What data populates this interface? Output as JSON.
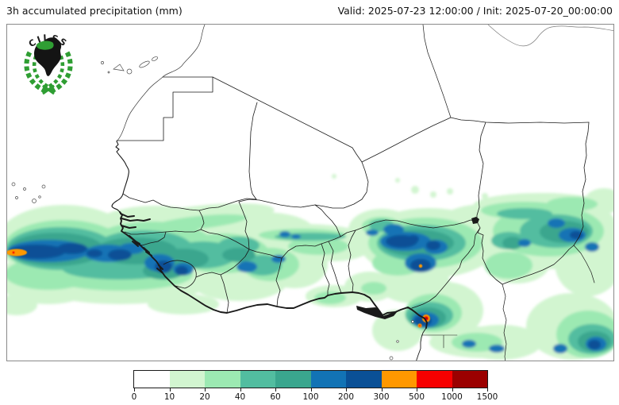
{
  "header": {
    "title": "3h accumulated precipitation (mm)",
    "valid": "Valid: 2025-07-23 12:00:00 / Init: 2025-07-20_00:00:00"
  },
  "logo": {
    "text": "CILSS"
  },
  "colorbar": {
    "ticks": [
      "0",
      "10",
      "20",
      "40",
      "60",
      "100",
      "200",
      "300",
      "500",
      "1000",
      "1500"
    ],
    "colors": [
      "#ffffff",
      "#d2f5d0",
      "#9ce9b2",
      "#52bda0",
      "#3aa68e",
      "#1273b5",
      "#0a5096",
      "#ff9800",
      "#f60000",
      "#9b0000"
    ],
    "units": "mm"
  },
  "map": {
    "region": "West Africa",
    "precip_levels_mm": [
      0,
      10,
      20,
      40,
      60,
      100,
      200,
      300,
      500,
      1000,
      1500
    ],
    "border_color": "#1a1a1a",
    "frame_color": "#8a8a8a"
  }
}
